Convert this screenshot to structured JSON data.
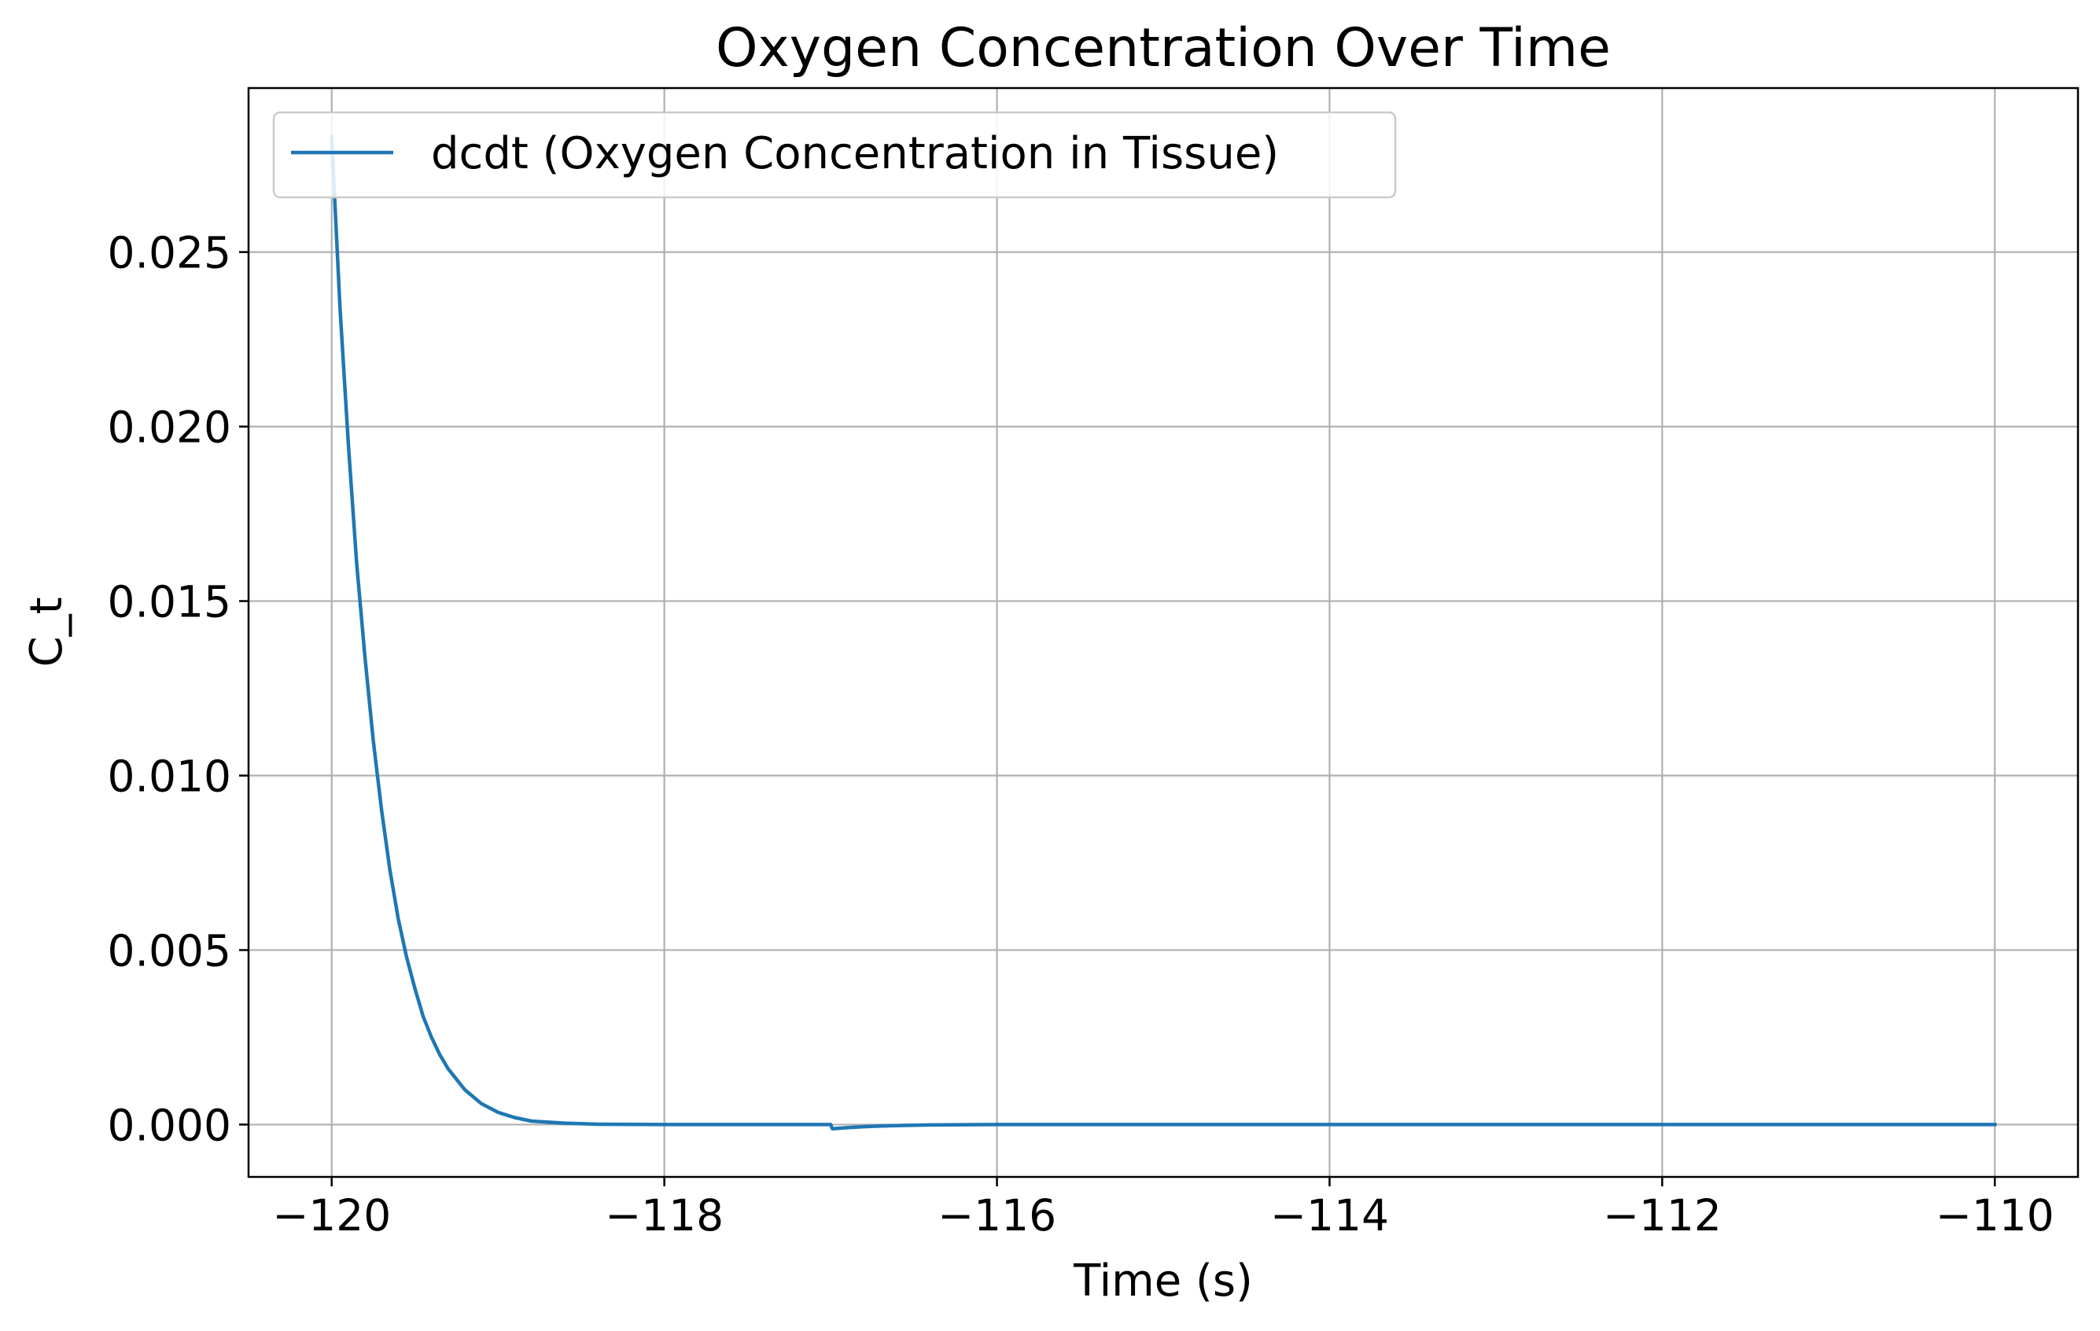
{
  "chart_data": {
    "type": "line",
    "title": "Oxygen Concentration Over Time",
    "xlabel": "Time (s)",
    "ylabel": "C_t",
    "xlim": [
      -120.5,
      -109.5
    ],
    "ylim": [
      -0.0015,
      0.0297
    ],
    "xticks": [
      -120,
      -118,
      -116,
      -114,
      -112,
      -110
    ],
    "xtick_labels": [
      "−120",
      "−118",
      "−116",
      "−114",
      "−112",
      "−110"
    ],
    "yticks": [
      0.0,
      0.005,
      0.01,
      0.015,
      0.02,
      0.025
    ],
    "ytick_labels": [
      "0.000",
      "0.005",
      "0.010",
      "0.015",
      "0.020",
      "0.025"
    ],
    "grid": true,
    "legend_position": "upper-left",
    "series": [
      {
        "name": "dcdt (Oxygen Concentration in Tissue)",
        "color": "#1f77b4",
        "x": [
          -120.0,
          -119.95,
          -119.9,
          -119.85,
          -119.8,
          -119.75,
          -119.7,
          -119.65,
          -119.6,
          -119.55,
          -119.5,
          -119.45,
          -119.4,
          -119.35,
          -119.3,
          -119.25,
          -119.2,
          -119.1,
          -119.0,
          -118.9,
          -118.8,
          -118.6,
          -118.4,
          -118.0,
          -117.5,
          -117.0,
          -116.99,
          -116.9,
          -116.8,
          -116.7,
          -116.6,
          -116.4,
          -116.0,
          -115.0,
          -114.0,
          -113.0,
          -112.0,
          -111.0,
          -110.0
        ],
        "y": [
          0.0283,
          0.0234,
          0.0195,
          0.0161,
          0.0134,
          0.011,
          0.009,
          0.0073,
          0.0059,
          0.0048,
          0.0039,
          0.0031,
          0.0025,
          0.002,
          0.0016,
          0.0013,
          0.001,
          0.0006,
          0.00035,
          0.0002,
          0.0001,
          4e-05,
          1e-05,
          0.0,
          0.0,
          0.0,
          -0.00012,
          -9e-05,
          -6e-05,
          -4e-05,
          -3e-05,
          -1e-05,
          0.0,
          0.0,
          0.0,
          0.0,
          0.0,
          0.0,
          0.0
        ]
      }
    ]
  }
}
